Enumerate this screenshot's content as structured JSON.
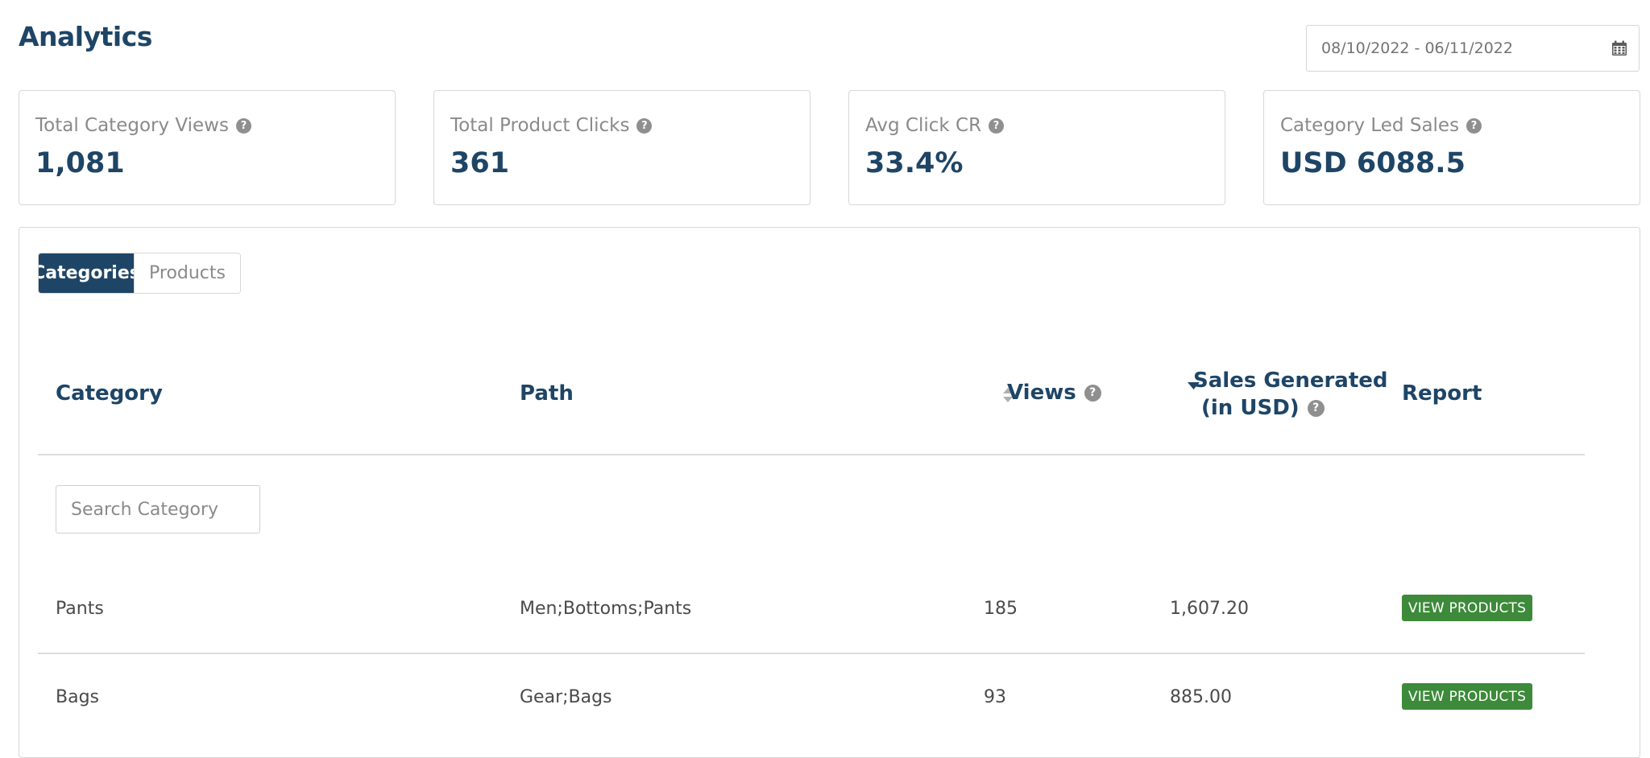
{
  "header": {
    "title": "Analytics",
    "date_range": "08/10/2022 - 06/11/2022"
  },
  "stats": [
    {
      "label": "Total Category Views",
      "value": "1,081"
    },
    {
      "label": "Total Product Clicks",
      "value": "361"
    },
    {
      "label": "Avg Click CR",
      "value": "33.4%"
    },
    {
      "label": "Category Led Sales",
      "value": "USD 6088.5"
    }
  ],
  "tabs": [
    {
      "label": "Categories",
      "active": true
    },
    {
      "label": "Products",
      "active": false
    }
  ],
  "table": {
    "columns": {
      "category": "Category",
      "path": "Path",
      "views": "Views",
      "sales_line1": "Sales Generated",
      "sales_line2": "(in USD)",
      "report": "Report"
    },
    "search_placeholder": "Search Category",
    "rows": [
      {
        "category": "Pants",
        "path": "Men;Bottoms;Pants",
        "views": "185",
        "sales": "1,607.20",
        "action": "VIEW PRODUCTS"
      },
      {
        "category": "Bags",
        "path": "Gear;Bags",
        "views": "93",
        "sales": "885.00",
        "action": "VIEW PRODUCTS"
      }
    ]
  },
  "icons": {
    "help": "question-circle-icon",
    "calendar": "calendar-icon",
    "sort_both": "sort-icon",
    "sort_desc": "sort-desc-icon"
  },
  "colors": {
    "primary": "#1f4566",
    "action": "#3d8a3a",
    "muted": "#8a8a8a",
    "border": "#d7d7d7"
  }
}
